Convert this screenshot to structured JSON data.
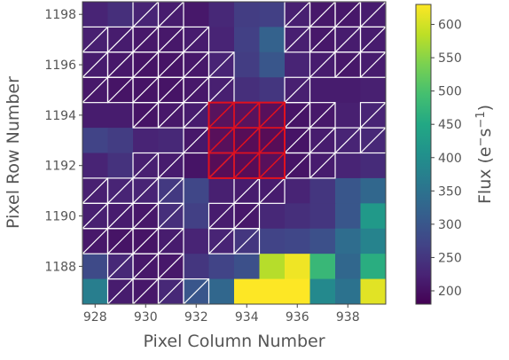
{
  "chart_data": {
    "type": "heatmap",
    "xlabel": "Pixel Column Number",
    "ylabel": "Pixel Row Number",
    "x_ticks": [
      928,
      930,
      932,
      934,
      936,
      938
    ],
    "y_ticks": [
      1188,
      1190,
      1192,
      1194,
      1196,
      1198
    ],
    "x_range": [
      927.5,
      939.5
    ],
    "y_range": [
      1186.5,
      1198.5
    ],
    "colorbar": {
      "label": "Flux (e⁻s⁻¹)",
      "label_main": "Flux (e",
      "label_sup1": "−",
      "label_mid": "s",
      "label_sup2": "−1",
      "label_end": ")",
      "ticks": [
        200,
        250,
        300,
        350,
        400,
        450,
        500,
        550,
        600
      ],
      "range": [
        180,
        630
      ],
      "colormap": "viridis"
    },
    "columns": [
      928,
      929,
      930,
      931,
      932,
      933,
      934,
      935,
      936,
      937,
      938,
      939
    ],
    "rows_top_to_bottom": [
      1198,
      1197,
      1196,
      1195,
      1194,
      1193,
      1192,
      1191,
      1190,
      1189,
      1188,
      1187
    ],
    "flux": [
      [
        225,
        240,
        225,
        215,
        210,
        230,
        260,
        265,
        220,
        210,
        210,
        215
      ],
      [
        220,
        215,
        210,
        210,
        215,
        225,
        265,
        320,
        220,
        210,
        215,
        215
      ],
      [
        215,
        210,
        205,
        205,
        210,
        225,
        260,
        300,
        225,
        215,
        210,
        215
      ],
      [
        210,
        205,
        205,
        205,
        210,
        220,
        240,
        250,
        220,
        215,
        215,
        220
      ],
      [
        215,
        215,
        205,
        210,
        215,
        205,
        205,
        200,
        205,
        210,
        220,
        225
      ],
      [
        270,
        260,
        225,
        230,
        210,
        200,
        195,
        195,
        205,
        215,
        225,
        230
      ],
      [
        225,
        245,
        220,
        215,
        205,
        195,
        195,
        200,
        205,
        215,
        225,
        235
      ],
      [
        220,
        225,
        225,
        255,
        275,
        220,
        215,
        215,
        225,
        250,
        300,
        330
      ],
      [
        220,
        215,
        210,
        240,
        265,
        215,
        210,
        230,
        240,
        250,
        300,
        420
      ],
      [
        210,
        205,
        205,
        215,
        225,
        225,
        250,
        270,
        275,
        290,
        340,
        380
      ],
      [
        280,
        230,
        210,
        210,
        250,
        270,
        290,
        580,
        620,
        480,
        330,
        460
      ],
      [
        370,
        215,
        210,
        230,
        300,
        330,
        640,
        640,
        640,
        390,
        350,
        610
      ]
    ],
    "hatched": [
      [
        0,
        0,
        1,
        1,
        0,
        0,
        0,
        0,
        1,
        1,
        1,
        1
      ],
      [
        1,
        1,
        1,
        1,
        1,
        0,
        0,
        0,
        1,
        1,
        1,
        1
      ],
      [
        1,
        1,
        1,
        1,
        1,
        1,
        0,
        0,
        0,
        1,
        1,
        1
      ],
      [
        1,
        1,
        1,
        1,
        1,
        1,
        0,
        0,
        1,
        0,
        0,
        0
      ],
      [
        0,
        0,
        1,
        1,
        1,
        0,
        0,
        0,
        1,
        1,
        0,
        1
      ],
      [
        0,
        0,
        0,
        0,
        1,
        0,
        0,
        0,
        1,
        1,
        1,
        1
      ],
      [
        0,
        0,
        1,
        1,
        0,
        1,
        0,
        0,
        1,
        1,
        0,
        0
      ],
      [
        1,
        1,
        1,
        1,
        0,
        0,
        1,
        1,
        0,
        0,
        0,
        0
      ],
      [
        1,
        1,
        1,
        1,
        0,
        1,
        1,
        0,
        0,
        0,
        0,
        0
      ],
      [
        1,
        1,
        1,
        1,
        0,
        1,
        1,
        0,
        0,
        0,
        0,
        0
      ],
      [
        0,
        1,
        1,
        1,
        0,
        0,
        0,
        0,
        0,
        0,
        0,
        0
      ],
      [
        0,
        1,
        1,
        1,
        1,
        0,
        0,
        0,
        0,
        0,
        0,
        0
      ]
    ],
    "aperture": {
      "columns": [
        933,
        934,
        935
      ],
      "rows": [
        1192,
        1193,
        1194
      ],
      "color": "#e0111e"
    }
  }
}
